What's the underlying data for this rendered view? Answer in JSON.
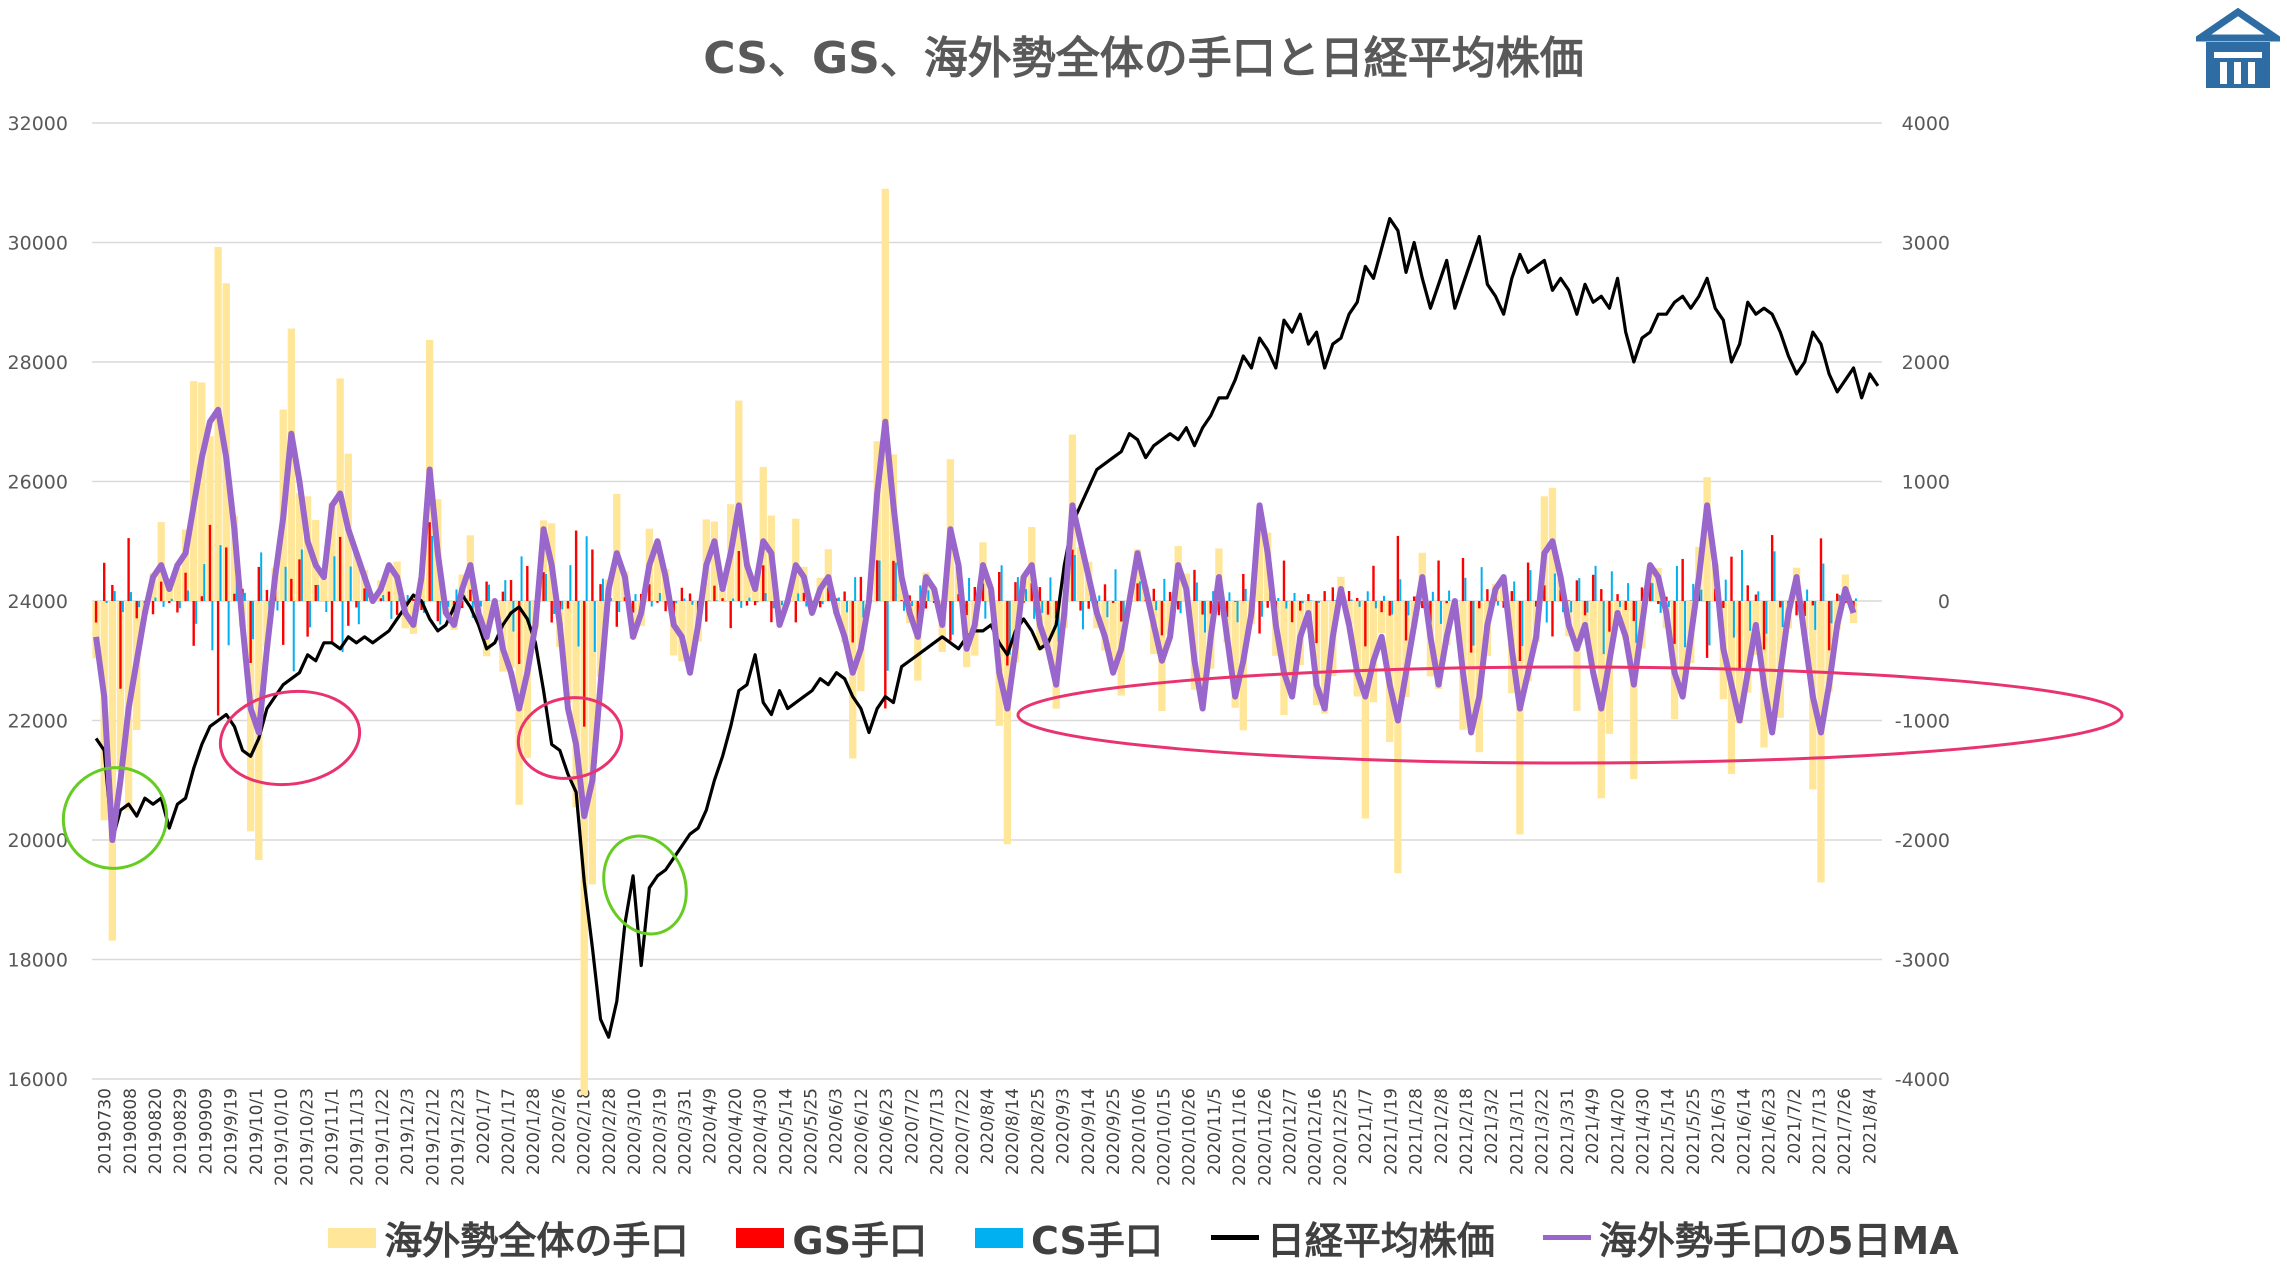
{
  "title": "CS、GS、海外勢全体の手口と日経平均株価",
  "colors": {
    "foreign_total": "#FFE699",
    "gs": "#FF0000",
    "cs": "#00B0F0",
    "nikkei": "#000000",
    "ma5": "#9966CC",
    "annotation_pink": "#E8336E",
    "annotation_green": "#66CC22",
    "logo": "#2E6DA4"
  },
  "logo_icon": "building-logo-icon",
  "legend": [
    {
      "label": "海外勢全体の手口",
      "kind": "bar",
      "color": "#FFE699"
    },
    {
      "label": "GS手口",
      "kind": "bar",
      "color": "#FF0000"
    },
    {
      "label": "CS手口",
      "kind": "bar",
      "color": "#00B0F0"
    },
    {
      "label": "日経平均株価",
      "kind": "line",
      "color": "#000000"
    },
    {
      "label": "海外勢手口の5日MA",
      "kind": "line",
      "color": "#9966CC"
    }
  ],
  "chart_data": {
    "type": "bar",
    "title": "CS、GS、海外勢全体の手口と日経平均株価",
    "grid": true,
    "legend_position": "bottom",
    "y_left": {
      "range": [
        16000,
        32000
      ],
      "ticks": [
        16000,
        18000,
        20000,
        22000,
        24000,
        26000,
        28000,
        30000,
        32000
      ]
    },
    "y_right": {
      "range": [
        -4000,
        4000
      ],
      "ticks": [
        -4000,
        -3000,
        -2000,
        -1000,
        0,
        1000,
        2000,
        3000,
        4000
      ]
    },
    "x_tick_labels": [
      "20190730",
      "20190808",
      "20190820",
      "20190829",
      "20190909",
      "2019/9/19",
      "2019/10/1",
      "2019/10/10",
      "2019/10/23",
      "2019/11/1",
      "2019/11/13",
      "2019/11/22",
      "2019/12/3",
      "2019/12/12",
      "2019/12/23",
      "2020/1/7",
      "2020/1/17",
      "2020/1/28",
      "2020/2/6",
      "2020/2/18",
      "2020/2/28",
      "2020/3/10",
      "2020/3/19",
      "2020/3/31",
      "2020/4/9",
      "2020/4/20",
      "2020/4/30",
      "2020/5/14",
      "2020/5/25",
      "2020/6/3",
      "2020/6/12",
      "2020/6/23",
      "2020/7/2",
      "2020/7/13",
      "2020/7/22",
      "2020/8/4",
      "2020/8/14",
      "2020/8/25",
      "2020/9/3",
      "2020/9/14",
      "2020/9/25",
      "2020/10/6",
      "2020/10/15",
      "2020/10/26",
      "2020/11/5",
      "2020/11/16",
      "2020/11/26",
      "2020/12/7",
      "2020/12/16",
      "2020/12/25",
      "2021/1/7",
      "2021/1/19",
      "2021/1/28",
      "2021/2/8",
      "2021/2/18",
      "2021/3/2",
      "2021/3/11",
      "2021/3/22",
      "2021/3/31",
      "2021/4/9",
      "2021/4/20",
      "2021/4/30",
      "2021/5/14",
      "2021/5/25",
      "2021/6/3",
      "2021/6/14",
      "2021/6/23",
      "2021/7/2",
      "2021/7/13",
      "2021/7/26",
      "2021/8/4"
    ],
    "series": [
      {
        "name": "日経平均株価",
        "axis": "left",
        "type": "line",
        "values": [
          21700,
          21500,
          20000,
          20500,
          20600,
          20400,
          20700,
          20600,
          20700,
          20200,
          20600,
          20700,
          21200,
          21600,
          21900,
          22000,
          22100,
          21900,
          21500,
          21400,
          21700,
          22200,
          22400,
          22600,
          22700,
          22800,
          23100,
          23000,
          23300,
          23300,
          23200,
          23400,
          23300,
          23400,
          23300,
          23400,
          23500,
          23700,
          23900,
          24100,
          24000,
          23700,
          23500,
          23600,
          23900,
          24100,
          23900,
          23600,
          23200,
          23300,
          23600,
          23800,
          23900,
          23700,
          23300,
          22500,
          21600,
          21500,
          21100,
          20800,
          19300,
          18200,
          17000,
          16700,
          17300,
          18600,
          19400,
          17900,
          19200,
          19400,
          19500,
          19700,
          19900,
          20100,
          20200,
          20500,
          21000,
          21400,
          21900,
          22500,
          22600,
          23100,
          22300,
          22100,
          22500,
          22200,
          22300,
          22400,
          22500,
          22700,
          22600,
          22800,
          22700,
          22400,
          22200,
          21800,
          22200,
          22400,
          22300,
          22900,
          23000,
          23100,
          23200,
          23300,
          23400,
          23300,
          23200,
          23400,
          23500,
          23500,
          23600,
          23300,
          23100,
          23500,
          23700,
          23500,
          23200,
          23300,
          23600,
          24600,
          25300,
          25600,
          25900,
          26200,
          26300,
          26400,
          26500,
          26800,
          26700,
          26400,
          26600,
          26700,
          26800,
          26700,
          26900,
          26600,
          26900,
          27100,
          27400,
          27400,
          27700,
          28100,
          27900,
          28400,
          28200,
          27900,
          28700,
          28500,
          28800,
          28300,
          28500,
          27900,
          28300,
          28400,
          28800,
          29000,
          29600,
          29400,
          29900,
          30400,
          30200,
          29500,
          30000,
          29400,
          28900,
          29300,
          29700,
          28900,
          29300,
          29700,
          30100,
          29300,
          29100,
          28800,
          29400,
          29800,
          29500,
          29600,
          29700,
          29200,
          29400,
          29200,
          28800,
          29300,
          29000,
          29100,
          28900,
          29400,
          28500,
          28000,
          28400,
          28500,
          28800,
          28800,
          29000,
          29100,
          28900,
          29100,
          29400,
          28900,
          28700,
          28000,
          28300,
          29000,
          28800,
          28900,
          28800,
          28500,
          28100,
          27800,
          28000,
          28500,
          28300,
          27800,
          27500,
          27700,
          27900,
          27400,
          27800,
          27600
        ]
      },
      {
        "name": "海外勢手口の5日MA",
        "axis": "right",
        "type": "line",
        "values": [
          -300,
          -800,
          -2000,
          -1500,
          -900,
          -500,
          -100,
          200,
          300,
          100,
          300,
          400,
          800,
          1200,
          1500,
          1600,
          1200,
          600,
          -200,
          -900,
          -1100,
          -400,
          200,
          700,
          1400,
          1000,
          500,
          300,
          200,
          800,
          900,
          600,
          400,
          200,
          0,
          100,
          300,
          200,
          -100,
          -200,
          200,
          1100,
          400,
          -100,
          -200,
          100,
          300,
          -100,
          -300,
          0,
          -400,
          -600,
          -900,
          -600,
          -200,
          600,
          300,
          -200,
          -900,
          -1200,
          -1800,
          -1500,
          -700,
          100,
          400,
          200,
          -300,
          -100,
          300,
          500,
          200,
          -200,
          -300,
          -600,
          -200,
          300,
          500,
          100,
          400,
          800,
          300,
          100,
          500,
          400,
          -200,
          0,
          300,
          200,
          -100,
          100,
          200,
          -100,
          -300,
          -600,
          -400,
          0,
          900,
          1500,
          800,
          200,
          -100,
          -300,
          200,
          100,
          -200,
          600,
          300,
          -400,
          -200,
          300,
          100,
          -600,
          -900,
          -400,
          200,
          300,
          -200,
          -400,
          -700,
          -100,
          800,
          500,
          200,
          -100,
          -300,
          -600,
          -400,
          0,
          400,
          100,
          -200,
          -500,
          -300,
          300,
          100,
          -500,
          -900,
          -300,
          200,
          -300,
          -800,
          -500,
          -100,
          800,
          400,
          -200,
          -600,
          -800,
          -300,
          -100,
          -700,
          -900,
          -300,
          100,
          -200,
          -600,
          -800,
          -500,
          -300,
          -700,
          -1000,
          -600,
          -200,
          200,
          -300,
          -700,
          -300,
          0,
          -600,
          -1100,
          -800,
          -200,
          100,
          200,
          -400,
          -900,
          -600,
          -300,
          400,
          500,
          200,
          -200,
          -400,
          -200,
          -600,
          -900,
          -500,
          -100,
          -300,
          -700,
          -200,
          300,
          200,
          -100,
          -600,
          -800,
          -300,
          200,
          800,
          300,
          -400,
          -700,
          -1000,
          -600,
          -200,
          -700,
          -1100,
          -600,
          -100,
          200,
          -300,
          -800,
          -1100,
          -700,
          -200,
          100,
          -100
        ]
      },
      {
        "name": "海外勢全体の手口",
        "axis": "right",
        "type": "bar"
      },
      {
        "name": "GS手口",
        "axis": "right",
        "type": "bar"
      },
      {
        "name": "CS手口",
        "axis": "right",
        "type": "bar"
      }
    ],
    "annotations": [
      {
        "shape": "ellipse",
        "color": "pink",
        "near": "2019/10/10"
      },
      {
        "shape": "ellipse",
        "color": "pink",
        "near": "2020/2/18"
      },
      {
        "shape": "ellipse",
        "color": "pink",
        "near": "2020/8/14 - 2021/8/4"
      },
      {
        "shape": "ellipse",
        "color": "green",
        "near": "20190808"
      },
      {
        "shape": "ellipse",
        "color": "green",
        "near": "2020/3/19"
      }
    ]
  }
}
